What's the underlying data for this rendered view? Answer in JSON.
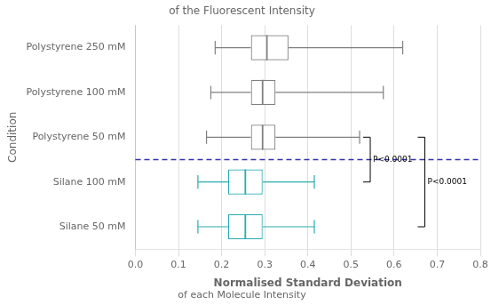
{
  "chart_data": {
    "type": "box",
    "orientation": "horizontal",
    "title": "of the Fluorescent Intensity",
    "xlabel": [
      "Normalised Standard Deviation",
      "of each Molecule Intensity"
    ],
    "ylabel": "Condition",
    "categories": [
      "Polystyrene 250 mM",
      "Polystyrene 100 mM",
      "Polystyrene 50 mM",
      "Silane 100 mM",
      "Silane 50 mM"
    ],
    "values": [
      {
        "low": 0.185,
        "q1": 0.268,
        "median": 0.305,
        "q3": 0.355,
        "high": 0.62
      },
      {
        "low": 0.175,
        "q1": 0.268,
        "median": 0.295,
        "q3": 0.325,
        "high": 0.575
      },
      {
        "low": 0.165,
        "q1": 0.268,
        "median": 0.295,
        "q3": 0.325,
        "high": 0.52
      },
      {
        "low": 0.145,
        "q1": 0.215,
        "median": 0.255,
        "q3": 0.295,
        "high": 0.415
      },
      {
        "low": 0.145,
        "q1": 0.215,
        "median": 0.255,
        "q3": 0.295,
        "high": 0.415
      }
    ],
    "colors": [
      "#808080",
      "#808080",
      "#808080",
      "#29ABB0",
      "#29ABB0"
    ],
    "xlim": [
      0.0,
      0.8
    ],
    "xticks": [
      {
        "value": 0.0,
        "label": "0.0"
      },
      {
        "value": 0.1,
        "label": "0.1"
      },
      {
        "value": 0.2,
        "label": "0.2"
      },
      {
        "value": 0.3,
        "label": "0.3"
      },
      {
        "value": 0.4,
        "label": "0.4"
      },
      {
        "value": 0.5,
        "label": "0.5"
      },
      {
        "value": 0.6,
        "label": "0.6"
      },
      {
        "value": 0.7,
        "label": "0.7"
      },
      {
        "value": 0.8,
        "label": "0.8"
      }
    ],
    "grid": "x",
    "annotations": [
      {
        "text": "P<0.0001",
        "from": "Polystyrene 50 mM",
        "to": "Silane 50 mM"
      },
      {
        "text": "P<0.0001",
        "from": "Polystyrene 50 mM",
        "to": "Silane 100 mM"
      }
    ],
    "divider": {
      "after": "Polystyrene 50 mM",
      "color": "#3333AA",
      "line_style": "dashed"
    }
  }
}
